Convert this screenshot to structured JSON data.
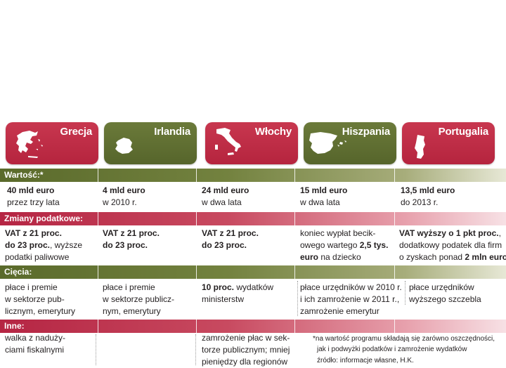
{
  "countries": [
    {
      "name": "Grecja",
      "color": "#c0304a"
    },
    {
      "name": "Irlandia",
      "color": "#5f6e30"
    },
    {
      "name": "Włochy",
      "color": "#c0304a"
    },
    {
      "name": "Hiszpania",
      "color": "#5f6e30"
    },
    {
      "name": "Portugalia",
      "color": "#c0304a"
    }
  ],
  "sections": {
    "wartosc": "Wartość:*",
    "zmiany": "Zmiany podatkowe:",
    "ciecia": "Cięcia:",
    "inne": "Inne:"
  },
  "wartosc": [
    {
      "l1": "40 mld euro",
      "l2": "przez trzy lata"
    },
    {
      "l1": "4 mld euro",
      "l2": "w 2010 r."
    },
    {
      "l1": "24 mld euro",
      "l2": "w dwa lata"
    },
    {
      "l1": "15 mld euro",
      "l2": "w dwa lata"
    },
    {
      "l1": "13,5 mld euro",
      "l2": "do 2013 r."
    }
  ],
  "zmiany": {
    "grecja": {
      "b1": "VAT z 21 proc.",
      "b2": "do 23 proc.",
      "t2": ", wyższe",
      "t3": "podatki paliwowe"
    },
    "irlandia": {
      "b1": "VAT z 21 proc.",
      "b2": "do 23 proc."
    },
    "wlochy": {
      "b1": "VAT z 21 proc.",
      "b2": "do 23 proc."
    },
    "hiszpania": {
      "t1": "koniec wypłat becik-",
      "t2": "owego wartego ",
      "b2": "2,5 tys.",
      "b3": "euro",
      "t3": " na dziecko"
    },
    "portugalia": {
      "b1": "VAT wyższy o 1 pkt proc.",
      "t1": ",",
      "t2": "dodatkowy podatek dla firm",
      "t3": "o zyskach ponad ",
      "b3": "2 mln euro"
    }
  },
  "ciecia": {
    "grecja": [
      "płace i premie",
      "w sektorze pub-",
      "licznym, emerytury"
    ],
    "irlandia": [
      "płace i premie",
      "w sektorze publicz-",
      "nym, emerytury"
    ],
    "wlochy": {
      "b1": "10 proc.",
      "t1": " wydatków",
      "t2": "ministerstw"
    },
    "hiszpania": [
      "płace urzędników w 2010 r.",
      "i ich zamrożenie w 2011 r.,",
      "zamrożenie emerytur"
    ],
    "portugalia": [
      "płace urzędników",
      "wyższego szczebla"
    ]
  },
  "inne": {
    "grecja": [
      "walka z nadużу-",
      "ciami fiskalnymi"
    ],
    "wlochy": [
      "zamrożenie płac w sek-",
      "torze publicznym; mniej",
      "pieniędzy dla regionów"
    ]
  },
  "footnote": {
    "l1": "*na wartość programu składają się zarówno oszczędności,",
    "l2": "jak i podwyżki podatków i zamrożenie wydatków",
    "source": "źródło: informacje własne, H.K."
  }
}
